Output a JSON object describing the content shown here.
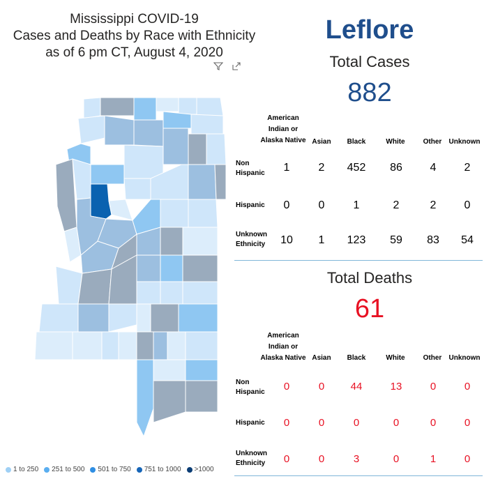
{
  "title": {
    "line1": "Mississippi COVID-19",
    "line2": "Cases and Deaths by Race with Ethnicity",
    "line3": "as of 6 pm CT, August 4, 2020"
  },
  "icons": {
    "filter": "filter-icon",
    "focus": "focus-mode-icon"
  },
  "colors": {
    "range1": "#bfe0f8",
    "range2": "#6db6f0",
    "range3": "#3b93e0",
    "range4": "#1f6fc0",
    "range5": "#0b3d75",
    "gray": "#9aabbd",
    "selected": "#0a62b0",
    "cases": "#1f4e8c",
    "deaths": "#e81123"
  },
  "legend": [
    {
      "label": "1 to 250",
      "color": "#9fd0f5"
    },
    {
      "label": "251 to 500",
      "color": "#5aaef0"
    },
    {
      "label": "501 to 750",
      "color": "#2f8ee3"
    },
    {
      "label": "751 to 1000",
      "color": "#1766b8"
    },
    {
      "label": ">1000",
      "color": "#0b3d75"
    }
  ],
  "county": "Leflore",
  "cases": {
    "label": "Total Cases",
    "total": "882",
    "headers": {
      "col1_l1": "American",
      "col1_l2": "Indian or",
      "col1_l3": "Alaska Native",
      "col2": "Asian",
      "col3": "Black",
      "col4": "White",
      "col5": "Other",
      "col6": "Unknown"
    },
    "rows": [
      {
        "label1": "Non",
        "label2": "Hispanic",
        "values": [
          "1",
          "2",
          "452",
          "86",
          "4",
          "2"
        ]
      },
      {
        "label1": "Hispanic",
        "label2": "",
        "values": [
          "0",
          "0",
          "1",
          "2",
          "2",
          "0"
        ]
      },
      {
        "label1": "Unknown",
        "label2": "Ethnicity",
        "values": [
          "10",
          "1",
          "123",
          "59",
          "83",
          "54"
        ]
      }
    ]
  },
  "deaths": {
    "label": "Total Deaths",
    "total": "61",
    "headers": {
      "col1_l1": "American",
      "col1_l2": "Indian or",
      "col1_l3": "Alaska Native",
      "col2": "Asian",
      "col3": "Black",
      "col4": "White",
      "col5": "Other",
      "col6": "Unknown"
    },
    "rows": [
      {
        "label1": "Non",
        "label2": "Hispanic",
        "values": [
          "0",
          "0",
          "44",
          "13",
          "0",
          "0"
        ]
      },
      {
        "label1": "Hispanic",
        "label2": "",
        "values": [
          "0",
          "0",
          "0",
          "0",
          "0",
          "0"
        ]
      },
      {
        "label1": "Unknown",
        "label2": "Ethnicity",
        "values": [
          "0",
          "0",
          "3",
          "0",
          "1",
          "0"
        ]
      }
    ]
  }
}
